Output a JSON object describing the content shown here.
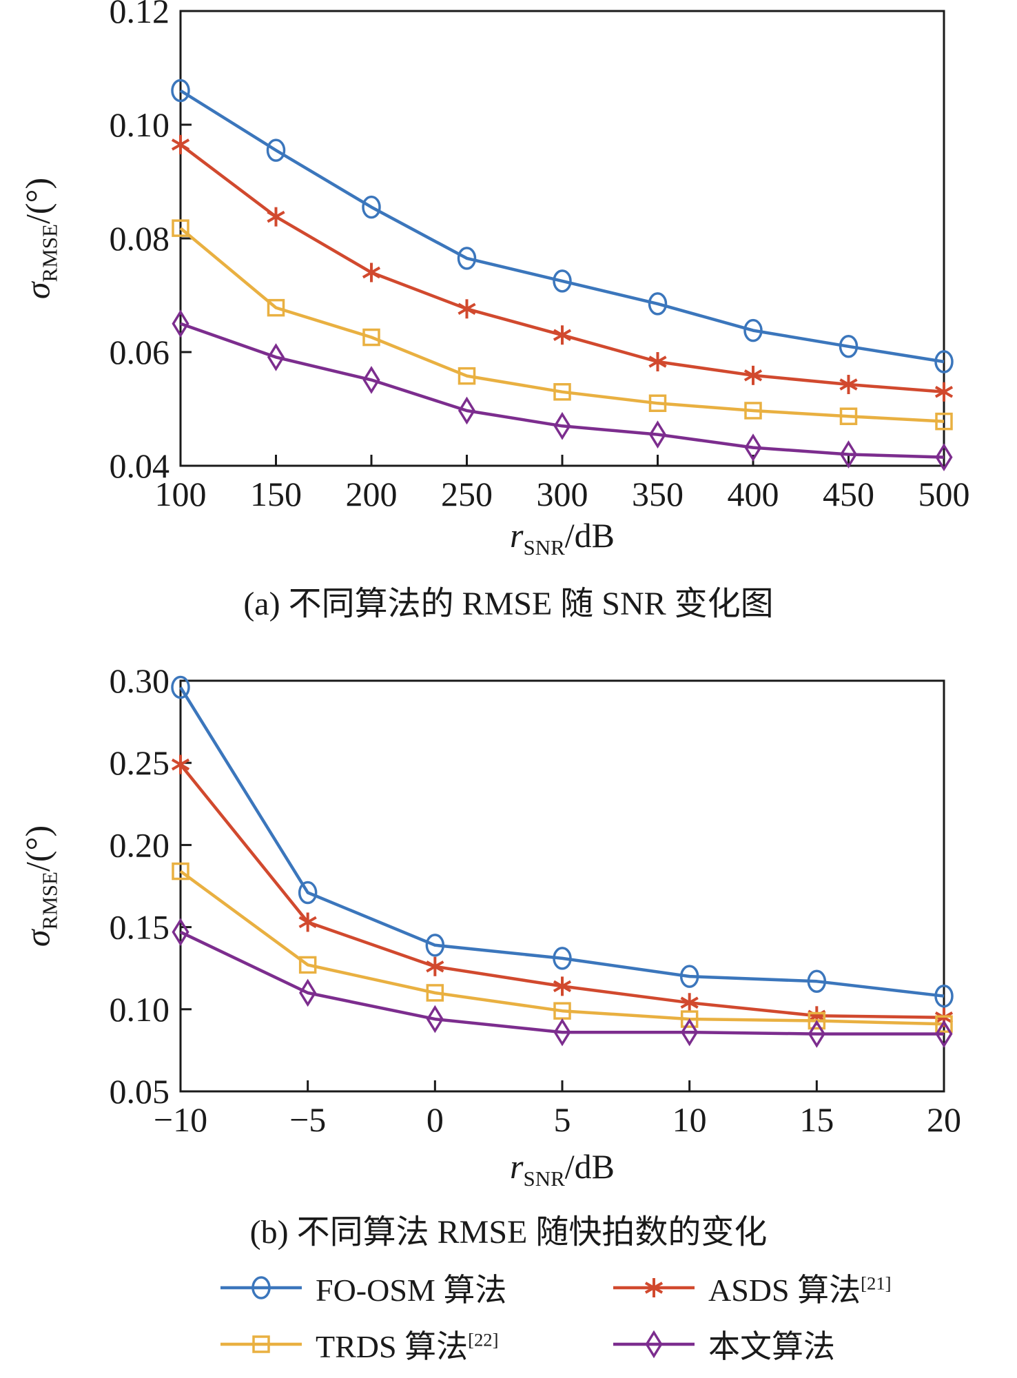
{
  "colors": {
    "blue": "#3B76BC",
    "red": "#D1492E",
    "yellow": "#E9B041",
    "purple": "#7C2D8E",
    "axis": "#1A1A1A",
    "text": "#1A1A1A"
  },
  "chart_data": [
    {
      "id": "a",
      "type": "line",
      "x": [
        100,
        150,
        200,
        250,
        300,
        350,
        400,
        450,
        500
      ],
      "xlim": [
        100,
        500
      ],
      "x_tick_labels": [
        "100",
        "150",
        "200",
        "250",
        "300",
        "350",
        "400",
        "450",
        "500"
      ],
      "ylim": [
        0.04,
        0.12
      ],
      "y_ticks": [
        0.04,
        0.06,
        0.08,
        0.1,
        0.12
      ],
      "y_tick_labels": [
        "0.04",
        "0.06",
        "0.08",
        "0.10",
        "0.12"
      ],
      "grid": false,
      "xlabel": {
        "var": "r",
        "sub": "SNR",
        "rest": "/dB"
      },
      "ylabel": {
        "var": "σ",
        "sub": "RMSE",
        "rest": "/(°)"
      },
      "caption": "(a) 不同算法的 RMSE 随 SNR 变化图",
      "series": [
        {
          "key": "fo_osm",
          "name": "FO-OSM 算法",
          "ref": "",
          "color": "blue",
          "marker": "circle",
          "values": [
            0.106,
            0.0955,
            0.0855,
            0.0765,
            0.0725,
            0.0685,
            0.0638,
            0.061,
            0.0583
          ]
        },
        {
          "key": "asds",
          "name": "ASDS 算法",
          "ref": "[21]",
          "color": "red",
          "marker": "asterisk",
          "values": [
            0.0965,
            0.0838,
            0.074,
            0.0676,
            0.063,
            0.0583,
            0.0559,
            0.0543,
            0.053
          ]
        },
        {
          "key": "trds",
          "name": "TRDS 算法",
          "ref": "[22]",
          "color": "yellow",
          "marker": "square",
          "values": [
            0.0818,
            0.0678,
            0.0626,
            0.0558,
            0.053,
            0.051,
            0.0497,
            0.0487,
            0.0478
          ]
        },
        {
          "key": "proposed",
          "name": "本文算法",
          "ref": "",
          "color": "purple",
          "marker": "diamond",
          "values": [
            0.065,
            0.0591,
            0.0551,
            0.0497,
            0.047,
            0.0455,
            0.0432,
            0.042,
            0.0415
          ]
        }
      ]
    },
    {
      "id": "b",
      "type": "line",
      "x": [
        -10,
        -5,
        0,
        5,
        10,
        15,
        20
      ],
      "xlim": [
        -10,
        20
      ],
      "x_tick_labels": [
        "−10",
        "−5",
        "0",
        "5",
        "10",
        "15",
        "20"
      ],
      "ylim": [
        0.05,
        0.3
      ],
      "y_ticks": [
        0.05,
        0.1,
        0.15,
        0.2,
        0.25,
        0.3
      ],
      "y_tick_labels": [
        "0.05",
        "0.10",
        "0.15",
        "0.20",
        "0.25",
        "0.30"
      ],
      "grid": false,
      "xlabel": {
        "var": "r",
        "sub": "SNR",
        "rest": "/dB"
      },
      "ylabel": {
        "var": "σ",
        "sub": "RMSE",
        "rest": "/(°)"
      },
      "caption": "(b) 不同算法 RMSE 随快拍数的变化",
      "series": [
        {
          "key": "fo_osm",
          "name": "FO-OSM 算法",
          "ref": "",
          "color": "blue",
          "marker": "circle",
          "values": [
            0.296,
            0.171,
            0.139,
            0.131,
            0.12,
            0.117,
            0.108
          ]
        },
        {
          "key": "asds",
          "name": "ASDS 算法",
          "ref": "[21]",
          "color": "red",
          "marker": "asterisk",
          "values": [
            0.249,
            0.153,
            0.126,
            0.114,
            0.104,
            0.096,
            0.095
          ]
        },
        {
          "key": "trds",
          "name": "TRDS 算法",
          "ref": "[22]",
          "color": "yellow",
          "marker": "square",
          "values": [
            0.184,
            0.127,
            0.11,
            0.099,
            0.094,
            0.093,
            0.091
          ]
        },
        {
          "key": "proposed",
          "name": "本文算法",
          "ref": "",
          "color": "purple",
          "marker": "diamond",
          "values": [
            0.147,
            0.11,
            0.094,
            0.086,
            0.086,
            0.085,
            0.085
          ]
        }
      ]
    }
  ],
  "legend": {
    "items": [
      {
        "key": "fo_osm",
        "label": "FO-OSM 算法",
        "ref": "",
        "color": "blue",
        "marker": "circle"
      },
      {
        "key": "asds",
        "label": "ASDS 算法",
        "ref": "[21]",
        "color": "red",
        "marker": "asterisk"
      },
      {
        "key": "trds",
        "label": "TRDS 算法",
        "ref": "[22]",
        "color": "yellow",
        "marker": "square"
      },
      {
        "key": "proposed",
        "label": "本文算法",
        "ref": "",
        "color": "purple",
        "marker": "diamond"
      }
    ]
  }
}
